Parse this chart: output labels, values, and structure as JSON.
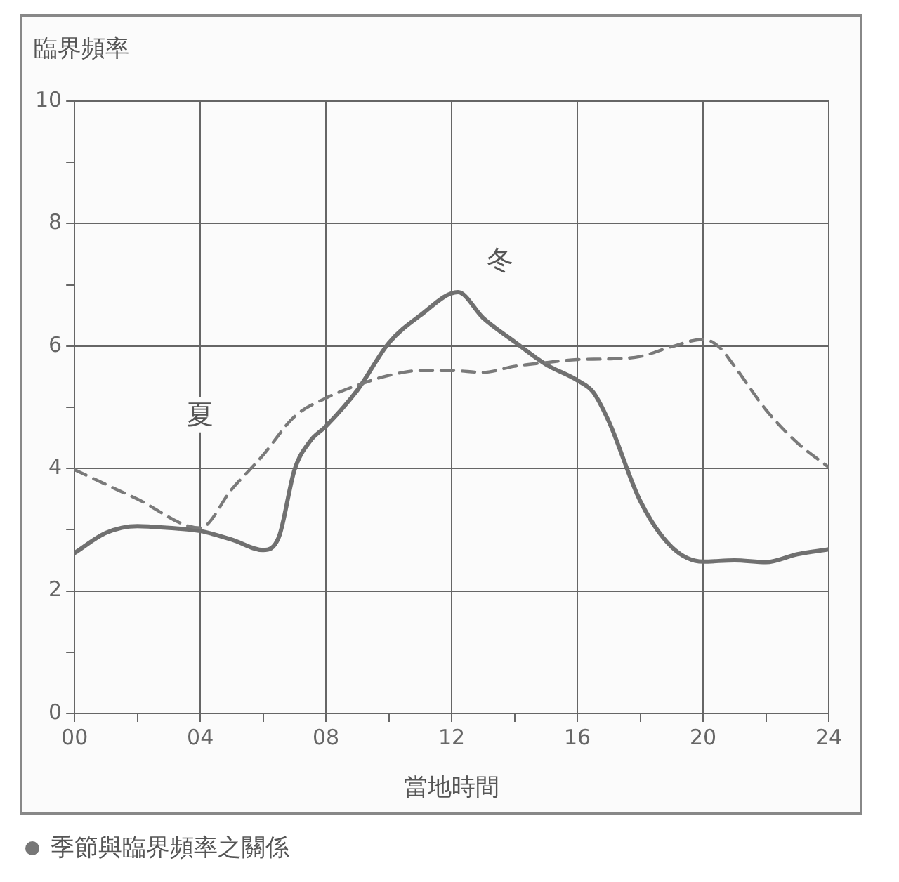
{
  "chart_data": {
    "type": "line",
    "ylabel": "臨界頻率",
    "xlabel": "當地時間",
    "annotations": [
      "季節與臨界頻率之關係"
    ],
    "xlim": [
      0,
      24
    ],
    "xticks": [
      {
        "value": 0,
        "label": "00"
      },
      {
        "value": 2,
        "label": null
      },
      {
        "value": 4,
        "label": "04"
      },
      {
        "value": 6,
        "label": null
      },
      {
        "value": 8,
        "label": "08"
      },
      {
        "value": 10,
        "label": null
      },
      {
        "value": 12,
        "label": "12"
      },
      {
        "value": 14,
        "label": null
      },
      {
        "value": 16,
        "label": "16"
      },
      {
        "value": 18,
        "label": null
      },
      {
        "value": 20,
        "label": "20"
      },
      {
        "value": 22,
        "label": null
      },
      {
        "value": 24,
        "label": "24"
      }
    ],
    "ylim": [
      0,
      10
    ],
    "yticks": [
      0,
      {
        "value": 1,
        "label": null
      },
      2,
      {
        "value": 3,
        "label": null
      },
      4,
      {
        "value": 5,
        "label": null
      },
      6,
      {
        "value": 7,
        "label": null
      },
      8,
      {
        "value": 9,
        "label": null
      },
      10
    ],
    "grid": true,
    "legend": false,
    "marker": "none",
    "series": [
      {
        "name": "夏",
        "color": "#7a7a7a",
        "line_style": "dashed",
        "x": [
          0,
          2,
          4,
          5,
          6,
          7,
          8,
          9,
          10,
          11,
          12,
          13,
          14,
          15,
          16,
          17,
          18,
          19,
          20,
          20.5,
          21,
          22,
          23,
          24
        ],
        "values": [
          3.98,
          3.5,
          3.03,
          3.66,
          4.22,
          4.85,
          5.15,
          5.36,
          5.52,
          5.6,
          5.6,
          5.57,
          5.67,
          5.73,
          5.78,
          5.79,
          5.83,
          5.99,
          6.11,
          5.99,
          5.67,
          4.96,
          4.42,
          4.02
        ]
      },
      {
        "name": "冬",
        "color": "#707070",
        "line_style": "solid",
        "x": [
          0,
          1,
          2,
          3,
          4,
          5,
          6,
          6.5,
          7,
          7.5,
          8,
          9,
          10,
          11,
          12.2,
          13,
          14,
          15,
          16,
          16.5,
          17,
          18,
          19,
          20,
          21,
          22,
          23,
          24
        ],
        "values": [
          2.62,
          2.95,
          3.06,
          3.03,
          2.98,
          2.84,
          2.67,
          2.88,
          3.98,
          4.45,
          4.69,
          5.28,
          6.05,
          6.5,
          6.88,
          6.46,
          6.07,
          5.7,
          5.44,
          5.25,
          4.77,
          3.47,
          2.72,
          2.48,
          2.5,
          2.47,
          2.6,
          2.68
        ]
      }
    ]
  }
}
